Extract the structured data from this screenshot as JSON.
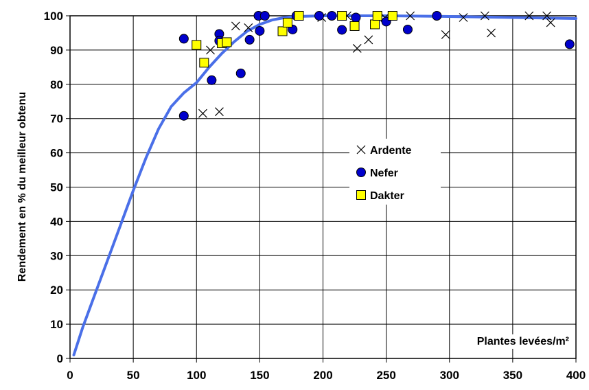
{
  "chart_data": {
    "type": "scatter",
    "title": "",
    "xlabel": "Plantes levées/m²",
    "ylabel": "Rendement en % du meilleur obtenu",
    "xlim": [
      0,
      400
    ],
    "ylim": [
      0,
      100
    ],
    "x_ticks": [
      "0",
      "50",
      "100",
      "150",
      "200",
      "250",
      "300",
      "350",
      "400"
    ],
    "y_ticks": [
      "0",
      "10",
      "20",
      "30",
      "40",
      "50",
      "60",
      "70",
      "80",
      "90",
      "100"
    ],
    "grid": true,
    "legend_position": "center-right",
    "series": [
      {
        "name": "Ardente",
        "marker": "x",
        "color": "#000000",
        "points": [
          [
            105,
            71.5
          ],
          [
            111,
            90
          ],
          [
            118,
            72
          ],
          [
            131,
            97
          ],
          [
            141,
            96.5
          ],
          [
            199,
            99.5
          ],
          [
            219,
            100
          ],
          [
            227,
            90.5
          ],
          [
            236,
            93
          ],
          [
            249,
            99.5
          ],
          [
            269,
            100
          ],
          [
            297,
            94.5
          ],
          [
            311,
            99.5
          ],
          [
            328,
            100
          ],
          [
            333,
            95
          ],
          [
            363,
            100
          ],
          [
            377,
            100
          ],
          [
            380,
            98
          ]
        ]
      },
      {
        "name": "Nefer",
        "marker": "circle",
        "color": "#0000CC",
        "points": [
          [
            90,
            93.3
          ],
          [
            90,
            70.8
          ],
          [
            112,
            81.2
          ],
          [
            118,
            94.7
          ],
          [
            118,
            92.7
          ],
          [
            135,
            83.2
          ],
          [
            142,
            93
          ],
          [
            149,
            100
          ],
          [
            150,
            95.6
          ],
          [
            154,
            100
          ],
          [
            176,
            96
          ],
          [
            179,
            100
          ],
          [
            197,
            100
          ],
          [
            207,
            100
          ],
          [
            215,
            95.9
          ],
          [
            226,
            99.5
          ],
          [
            250,
            98.3
          ],
          [
            267,
            96
          ],
          [
            290,
            100
          ],
          [
            395,
            91.7
          ]
        ]
      },
      {
        "name": "Dakter",
        "marker": "square",
        "color": "#FFFF00",
        "points": [
          [
            100,
            91.5
          ],
          [
            106,
            86.3
          ],
          [
            120,
            92
          ],
          [
            124,
            92.3
          ],
          [
            168,
            95.5
          ],
          [
            172,
            98
          ],
          [
            181,
            100
          ],
          [
            215,
            100
          ],
          [
            225,
            97
          ],
          [
            241,
            97.5
          ],
          [
            243,
            100
          ],
          [
            255,
            100
          ]
        ]
      }
    ],
    "trend_line": {
      "color": "#4A6FE8",
      "points": [
        [
          3,
          1
        ],
        [
          10,
          9
        ],
        [
          20,
          19
        ],
        [
          30,
          29
        ],
        [
          40,
          39
        ],
        [
          50,
          49
        ],
        [
          60,
          58.5
        ],
        [
          70,
          67
        ],
        [
          80,
          73.5
        ],
        [
          90,
          77.5
        ],
        [
          100,
          80.5
        ],
        [
          110,
          85
        ],
        [
          120,
          89
        ],
        [
          130,
          92.5
        ],
        [
          140,
          95.5
        ],
        [
          150,
          97.5
        ],
        [
          160,
          98.8
        ],
        [
          170,
          99.5
        ],
        [
          180,
          99.8
        ],
        [
          200,
          100
        ],
        [
          250,
          100
        ],
        [
          300,
          99.8
        ],
        [
          350,
          99.5
        ],
        [
          400,
          99.2
        ]
      ]
    }
  }
}
